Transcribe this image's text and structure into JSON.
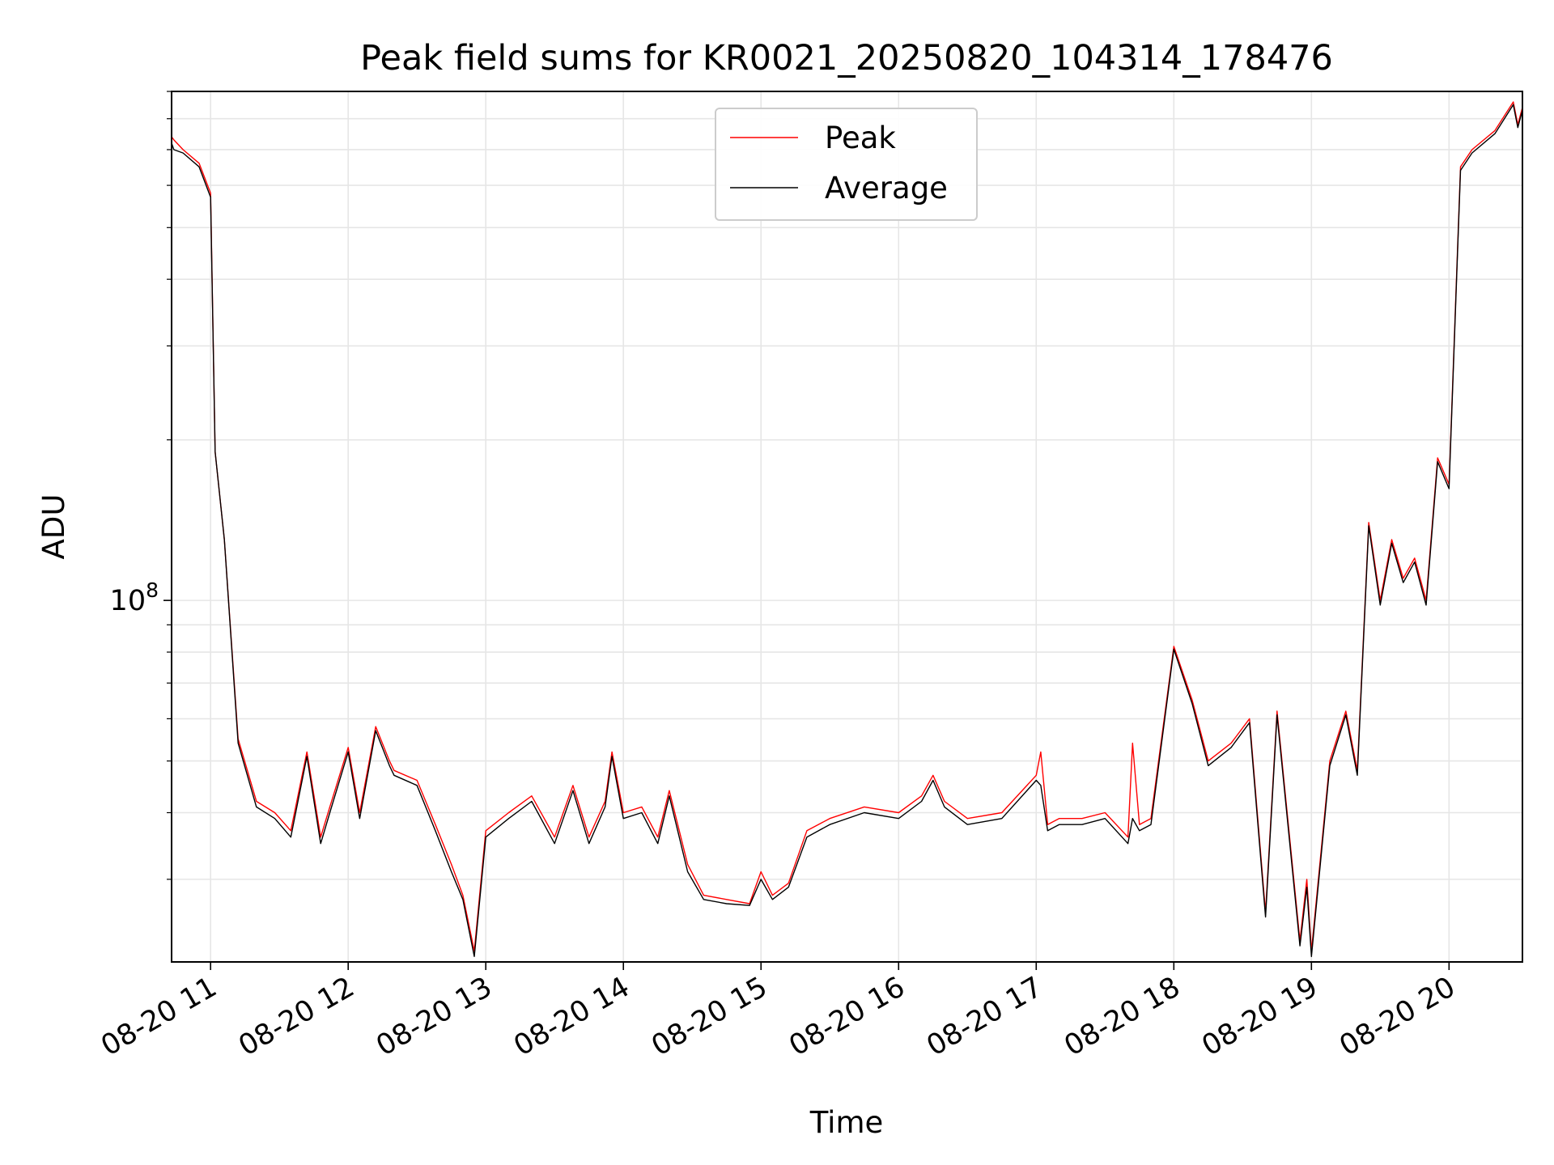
{
  "chart_data": {
    "type": "line",
    "title": "Peak field sums for KR0021_20250820_104314_178476",
    "xlabel": "Time",
    "ylabel": "ADU",
    "y_scale": "log",
    "ylim": [
      21000000,
      900000000
    ],
    "xlim": [
      "2025-08-20 10:43",
      "2025-08-20 20:32"
    ],
    "x_ticks": [
      "08-20 11",
      "08-20 12",
      "08-20 13",
      "08-20 14",
      "08-20 15",
      "08-20 16",
      "08-20 17",
      "08-20 18",
      "08-20 19",
      "08-20 20"
    ],
    "y_tick_label": {
      "base": "10",
      "exponent": "8"
    },
    "grid": true,
    "legend_position": "upper center",
    "colors": {
      "peak": "#ff0000",
      "average": "#000000"
    },
    "x": [
      "10:43",
      "10:44",
      "10:48",
      "10:55",
      "11:00",
      "11:02",
      "11:06",
      "11:12",
      "11:20",
      "11:28",
      "11:35",
      "11:42",
      "11:48",
      "11:52",
      "12:00",
      "12:05",
      "12:12",
      "12:18",
      "12:20",
      "12:30",
      "12:38",
      "12:45",
      "12:50",
      "12:55",
      "13:00",
      "13:10",
      "13:20",
      "13:30",
      "13:38",
      "13:45",
      "13:52",
      "13:55",
      "14:00",
      "14:08",
      "14:15",
      "14:20",
      "14:28",
      "14:35",
      "14:45",
      "14:55",
      "15:00",
      "15:05",
      "15:12",
      "15:20",
      "15:30",
      "15:45",
      "16:00",
      "16:10",
      "16:15",
      "16:20",
      "16:30",
      "16:45",
      "17:00",
      "17:02",
      "17:05",
      "17:10",
      "17:20",
      "17:30",
      "17:40",
      "17:42",
      "17:45",
      "17:50",
      "18:00",
      "18:08",
      "18:15",
      "18:25",
      "18:33",
      "18:40",
      "18:45",
      "18:55",
      "18:58",
      "19:00",
      "19:08",
      "19:15",
      "19:20",
      "19:25",
      "19:30",
      "19:35",
      "19:40",
      "19:45",
      "19:50",
      "19:55",
      "20:00",
      "20:05",
      "20:10",
      "20:20",
      "20:28",
      "20:30",
      "20:32"
    ],
    "series": [
      {
        "name": "Peak",
        "values": [
          740000000,
          730000000,
          700000000,
          660000000,
          580000000,
          190000000,
          130000000,
          55000000,
          42000000,
          40000000,
          37000000,
          52000000,
          36000000,
          41000000,
          53000000,
          40000000,
          58000000,
          50000000,
          48000000,
          46000000,
          38000000,
          32000000,
          28000000,
          22000000,
          37000000,
          40000000,
          43000000,
          36000000,
          45000000,
          36000000,
          42000000,
          52000000,
          40000000,
          41000000,
          36000000,
          44000000,
          32000000,
          28000000,
          27500000,
          27000000,
          31000000,
          28000000,
          29500000,
          37000000,
          39000000,
          41000000,
          40000000,
          43000000,
          47000000,
          42000000,
          39000000,
          40000000,
          47000000,
          52000000,
          38000000,
          39000000,
          39000000,
          40000000,
          36000000,
          54000000,
          38000000,
          39000000,
          82000000,
          65000000,
          50000000,
          54000000,
          60000000,
          26000000,
          62000000,
          23000000,
          30000000,
          22000000,
          50000000,
          62000000,
          48000000,
          140000000,
          100000000,
          130000000,
          110000000,
          120000000,
          100000000,
          185000000,
          165000000,
          650000000,
          700000000,
          760000000,
          860000000,
          780000000,
          840000000
        ]
      },
      {
        "name": "Average",
        "values": [
          720000000,
          700000000,
          690000000,
          650000000,
          570000000,
          190000000,
          130000000,
          54000000,
          41000000,
          39000000,
          36000000,
          51000000,
          35000000,
          40000000,
          52000000,
          39000000,
          57000000,
          49000000,
          47000000,
          45000000,
          37000000,
          31000000,
          27500000,
          21500000,
          36000000,
          39000000,
          42000000,
          35000000,
          44000000,
          35000000,
          41000000,
          51000000,
          39000000,
          40000000,
          35000000,
          43000000,
          31000000,
          27500000,
          27000000,
          26800000,
          30000000,
          27500000,
          29000000,
          36000000,
          38000000,
          40000000,
          39000000,
          42000000,
          46000000,
          41000000,
          38000000,
          39000000,
          46000000,
          45000000,
          37000000,
          38000000,
          38000000,
          39000000,
          35000000,
          39000000,
          37000000,
          38000000,
          81000000,
          64000000,
          49000000,
          53000000,
          59000000,
          25500000,
          61000000,
          22500000,
          29000000,
          21500000,
          49000000,
          61000000,
          47000000,
          138000000,
          98000000,
          128000000,
          108000000,
          118000000,
          98000000,
          182000000,
          162000000,
          640000000,
          690000000,
          750000000,
          850000000,
          770000000,
          830000000
        ]
      }
    ]
  }
}
